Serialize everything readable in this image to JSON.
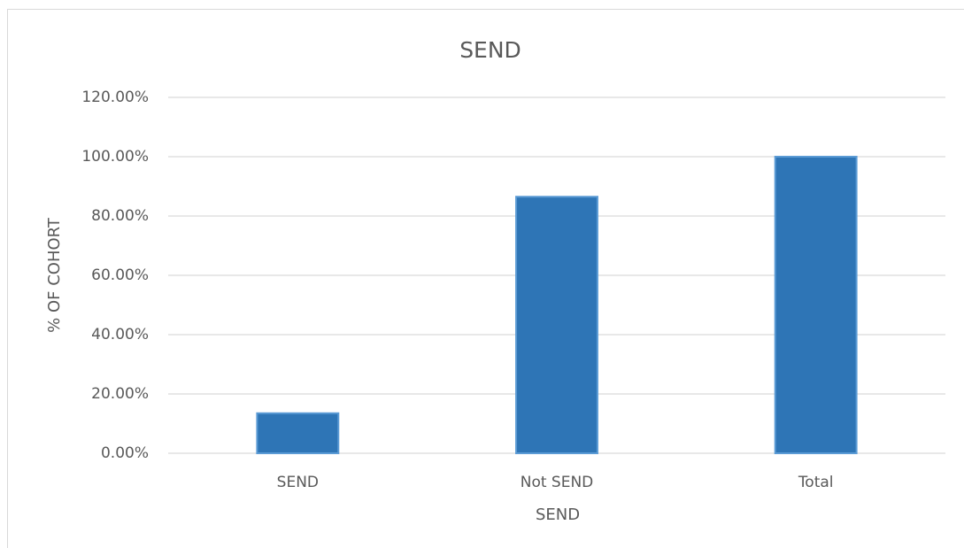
{
  "chart_data": {
    "type": "bar",
    "title": "SEND",
    "x_label": "SEND",
    "y_label": "% OF COHORT",
    "categories": [
      "SEND",
      "Not SEND",
      "Total"
    ],
    "values": [
      13.5,
      86.5,
      100
    ],
    "color": "#2e75b6",
    "ylim": [
      0,
      120
    ],
    "yticks": [
      {
        "value": 0,
        "label": "0.00%"
      },
      {
        "value": 20,
        "label": "20.00%"
      },
      {
        "value": 40,
        "label": "40.00%"
      },
      {
        "value": 60,
        "label": "60.00%"
      },
      {
        "value": 80,
        "label": "80.00%"
      },
      {
        "value": 100,
        "label": "100.00%"
      },
      {
        "value": 120,
        "label": "120.00%"
      }
    ],
    "grid": true
  }
}
